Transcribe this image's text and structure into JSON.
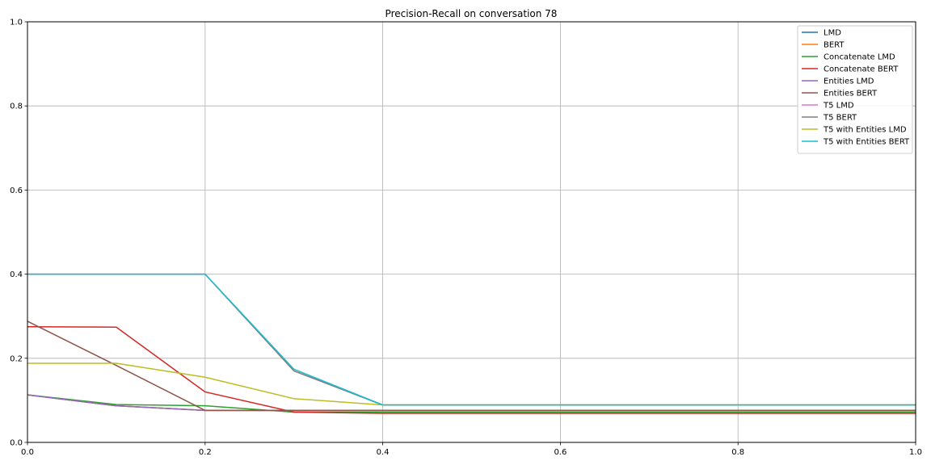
{
  "chart_data": {
    "type": "line",
    "title": "Precision-Recall on conversation 78",
    "xlabel": "",
    "ylabel": "",
    "xlim": [
      0,
      1
    ],
    "ylim": [
      0,
      1
    ],
    "x_ticks": [
      "0.0",
      "0.2",
      "0.4",
      "0.6",
      "0.8",
      "1.0"
    ],
    "y_ticks": [
      "0.0",
      "0.2",
      "0.4",
      "0.6",
      "0.8",
      "1.0"
    ],
    "grid": true,
    "legend_position": "top-right",
    "x": [
      0.0,
      0.1,
      0.2,
      0.3,
      0.4,
      0.5,
      0.6,
      0.7,
      0.8,
      0.9,
      1.0
    ],
    "series": [
      {
        "name": "LMD",
        "color": "#1f77b4",
        "values": [
          0.113,
          0.087,
          0.076,
          0.076,
          0.076,
          0.076,
          0.076,
          0.076,
          0.076,
          0.076,
          0.076
        ]
      },
      {
        "name": "BERT",
        "color": "#ff7f0e",
        "values": [
          0.113,
          0.087,
          0.076,
          0.076,
          0.076,
          0.076,
          0.076,
          0.076,
          0.076,
          0.076,
          0.076
        ]
      },
      {
        "name": "Concatenate LMD",
        "color": "#2ca02c",
        "values": [
          0.113,
          0.09,
          0.087,
          0.072,
          0.072,
          0.072,
          0.072,
          0.072,
          0.072,
          0.072,
          0.072
        ]
      },
      {
        "name": "Concatenate BERT",
        "color": "#d62728",
        "values": [
          0.275,
          0.274,
          0.12,
          0.072,
          0.069,
          0.069,
          0.069,
          0.069,
          0.069,
          0.069,
          0.069
        ]
      },
      {
        "name": "Entities LMD",
        "color": "#9467bd",
        "values": [
          0.113,
          0.087,
          0.076,
          0.076,
          0.076,
          0.076,
          0.076,
          0.076,
          0.076,
          0.076,
          0.076
        ]
      },
      {
        "name": "Entities BERT",
        "color": "#8c564b",
        "values": [
          0.288,
          0.183,
          0.076,
          0.076,
          0.076,
          0.076,
          0.076,
          0.076,
          0.076,
          0.076,
          0.076
        ]
      },
      {
        "name": "T5 LMD",
        "color": "#e377c2",
        "values": [
          0.4,
          0.4,
          0.4,
          0.17,
          0.089,
          0.089,
          0.089,
          0.089,
          0.089,
          0.089,
          0.089
        ]
      },
      {
        "name": "T5 BERT",
        "color": "#7f7f7f",
        "values": [
          0.4,
          0.4,
          0.4,
          0.17,
          0.089,
          0.089,
          0.089,
          0.089,
          0.089,
          0.089,
          0.089
        ]
      },
      {
        "name": "T5 with Entities LMD",
        "color": "#bcbd22",
        "values": [
          0.188,
          0.188,
          0.155,
          0.104,
          0.089,
          0.089,
          0.089,
          0.089,
          0.089,
          0.089,
          0.089
        ]
      },
      {
        "name": "T5 with Entities BERT",
        "color": "#17becf",
        "values": [
          0.4,
          0.4,
          0.4,
          0.174,
          0.089,
          0.089,
          0.089,
          0.089,
          0.089,
          0.089,
          0.089
        ]
      }
    ]
  }
}
